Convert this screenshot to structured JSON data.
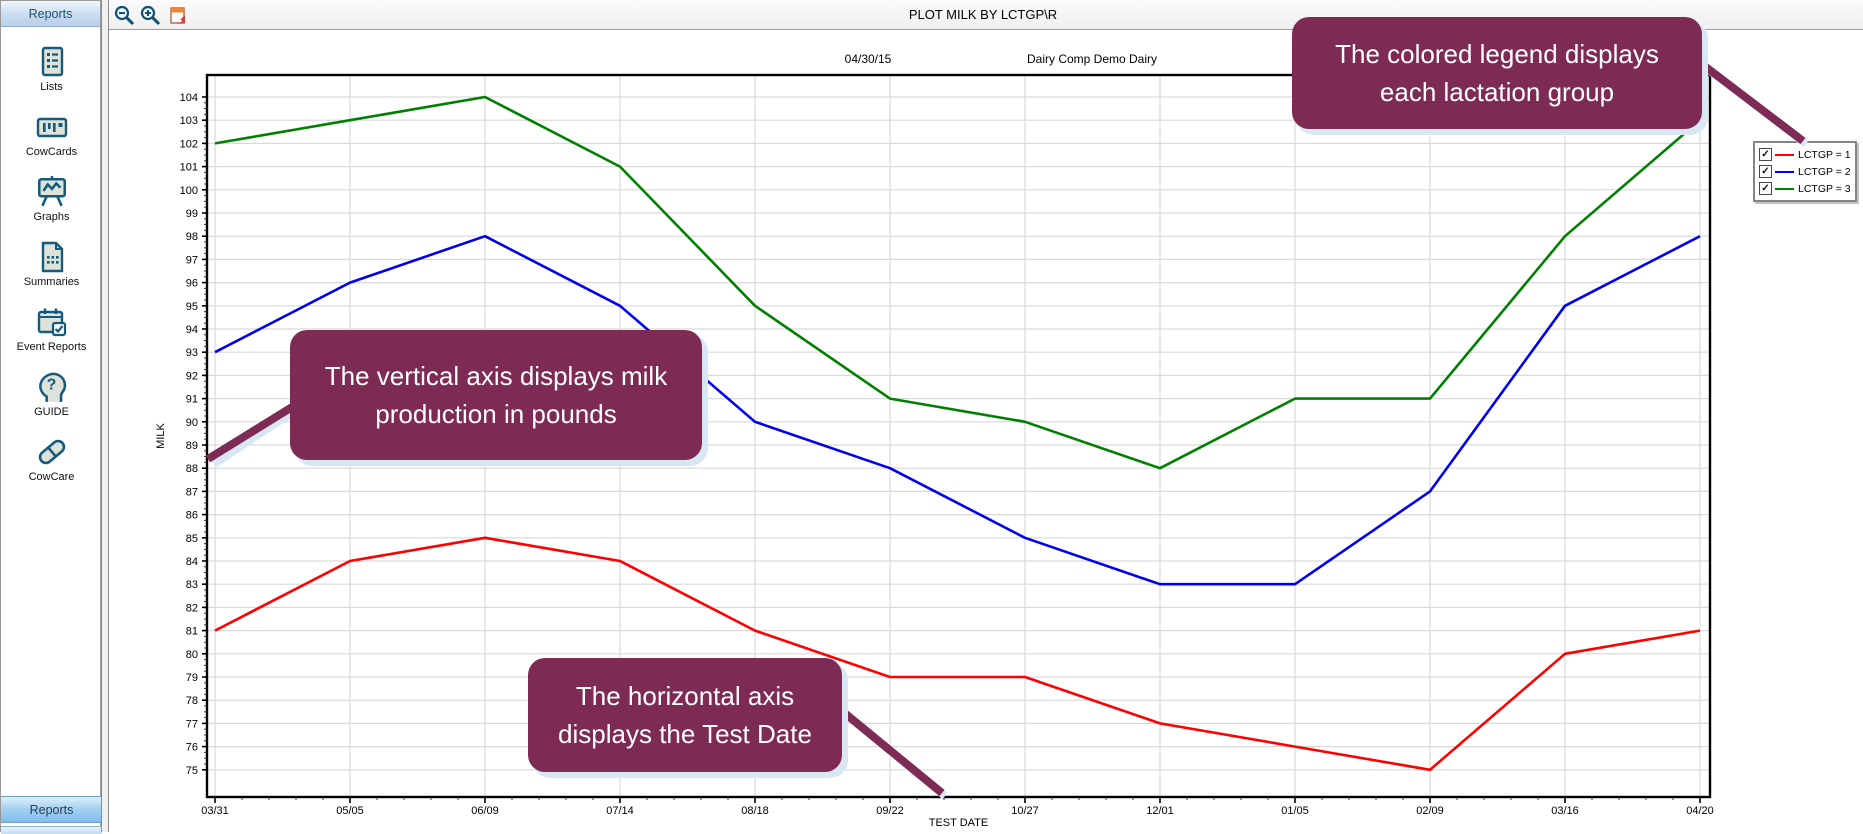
{
  "app": {
    "accent_color": "#7d2b55",
    "callout_shadow_color": "#d9e7f5"
  },
  "sidebar": {
    "header": "Reports",
    "items": [
      {
        "label": "Lists",
        "icon": "lists-icon"
      },
      {
        "label": "CowCards",
        "icon": "cowcards-icon"
      },
      {
        "label": "Graphs",
        "icon": "graphs-icon"
      },
      {
        "label": "Summaries",
        "icon": "summaries-icon"
      },
      {
        "label": "Event Reports",
        "icon": "event-reports-icon"
      },
      {
        "label": "GUIDE",
        "icon": "guide-icon"
      },
      {
        "label": "CowCare",
        "icon": "cowcare-icon"
      }
    ],
    "bottom_tab": "Reports"
  },
  "toolbar": {
    "title": "PLOT MILK BY LCTGP\\R",
    "icons": [
      "zoom-out-icon",
      "zoom-in-icon",
      "export-report-icon"
    ]
  },
  "chart_data": {
    "type": "line",
    "subtitle_date": "04/30/15",
    "subtitle_herd": "Dairy Comp Demo Dairy",
    "xlabel": "TEST DATE",
    "ylabel": "MILK",
    "ylim": [
      75,
      104
    ],
    "ytick_step": 1,
    "grid": true,
    "legend_position": "right",
    "categories": [
      "03/31",
      "05/05",
      "06/09",
      "07/14",
      "08/18",
      "09/22",
      "10/27",
      "12/01",
      "01/05",
      "02/09",
      "03/16",
      "04/20"
    ],
    "series": [
      {
        "name": "LCTGP = 1",
        "color": "#ff0000",
        "values": [
          81,
          84,
          85,
          84,
          81,
          79,
          79,
          77,
          76,
          75,
          80,
          81
        ]
      },
      {
        "name": "LCTGP = 2",
        "color": "#0000ee",
        "values": [
          93,
          96,
          98,
          95,
          90,
          88,
          85,
          83,
          83,
          87,
          95,
          98
        ]
      },
      {
        "name": "LCTGP = 3",
        "color": "#008000",
        "values": [
          102,
          103,
          104,
          101,
          95,
          91,
          90,
          88,
          91,
          91,
          98,
          103
        ]
      }
    ]
  },
  "legend": {
    "items": [
      {
        "label": "LCTGP = 1",
        "color": "#ff0000",
        "checked": true
      },
      {
        "label": "LCTGP = 2",
        "color": "#0000ee",
        "checked": true
      },
      {
        "label": "LCTGP = 3",
        "color": "#008000",
        "checked": true
      }
    ]
  },
  "callouts": [
    {
      "id": "vertical-axis",
      "line1": "The vertical axis displays milk",
      "line2": "production in pounds"
    },
    {
      "id": "horizontal-axis",
      "line1": "The horizontal axis",
      "line2": "displays the Test Date"
    },
    {
      "id": "legend",
      "line1": "The colored legend displays",
      "line2": "each lactation group"
    }
  ]
}
